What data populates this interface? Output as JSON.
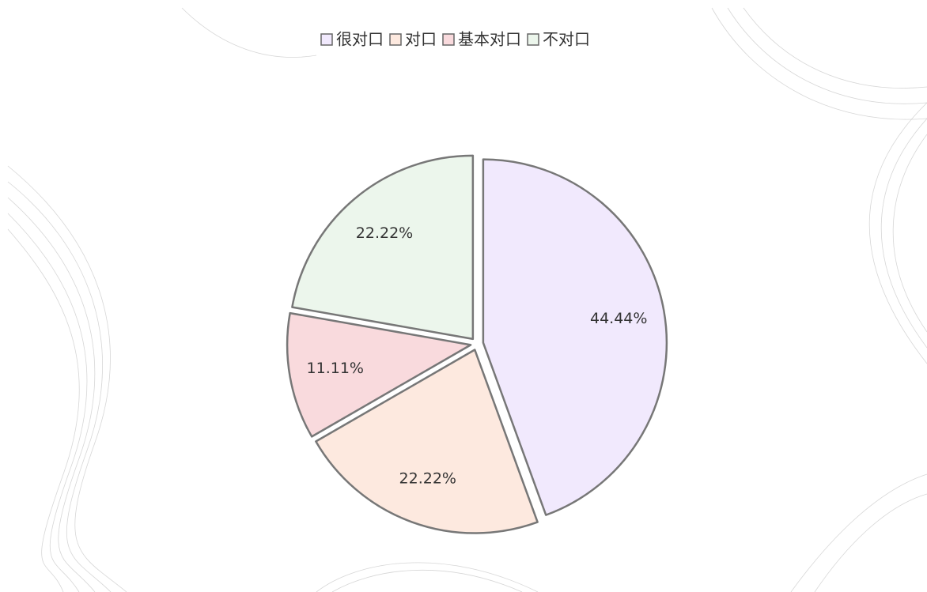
{
  "chart_data": {
    "type": "pie",
    "categories": [
      "很对口",
      "对口",
      "基本对口",
      "不对口"
    ],
    "values": [
      44.44,
      22.22,
      11.11,
      22.22
    ],
    "value_labels": [
      "44.44%",
      "22.22%",
      "11.11%",
      "22.22%"
    ],
    "colors": [
      "#f1e9fd",
      "#fde9df",
      "#f9dadd",
      "#ecf6ec"
    ],
    "legend": "top"
  }
}
